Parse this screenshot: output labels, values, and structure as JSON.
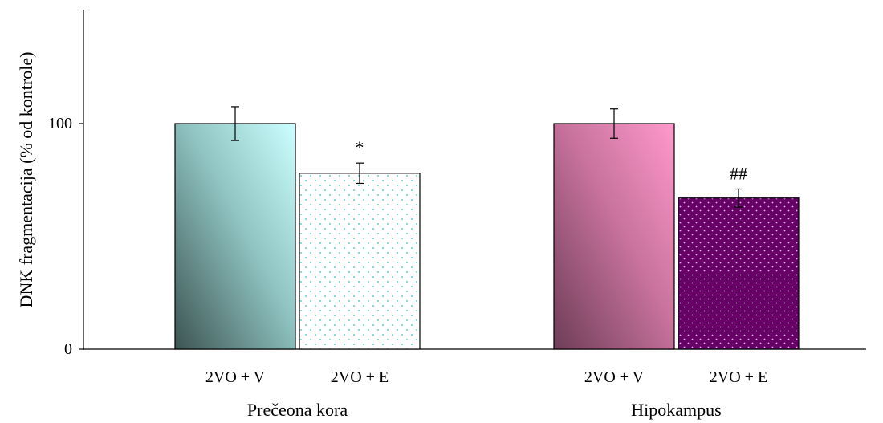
{
  "chart_data": {
    "type": "bar",
    "ylabel": "DNK  fragmentacija (%  od  kontrole)",
    "xlabel": "",
    "title": "",
    "ylim": [
      0,
      150
    ],
    "yticks": [
      0,
      100
    ],
    "ytick_labels": [
      "0",
      "100"
    ],
    "grid": false,
    "groups": [
      {
        "label": "Prečeona  kora",
        "bars": [
          {
            "label": "2VO + V",
            "value": 100,
            "error": 7.5,
            "annotation": "",
            "style": "teal-gradient"
          },
          {
            "label": "2VO + E",
            "value": 78,
            "error": 4.5,
            "annotation": "*",
            "style": "teal-dots"
          }
        ]
      },
      {
        "label": "Hipokampus",
        "bars": [
          {
            "label": "2VO + V",
            "value": 100,
            "error": 6.5,
            "annotation": "",
            "style": "pink-gradient"
          },
          {
            "label": "2VO + E",
            "value": 67,
            "error": 4.0,
            "annotation": "##",
            "style": "purple-dots"
          }
        ]
      }
    ]
  },
  "colors": {
    "teal_light": "#ccffff",
    "teal_dark": "#3d5452",
    "teal_dot": "#66cccc",
    "pink_light": "#ff99cc",
    "pink_dark": "#6e3d57",
    "purple_fill": "#660066",
    "purple_dot": "#e6b8e6",
    "axis": "#000000"
  }
}
